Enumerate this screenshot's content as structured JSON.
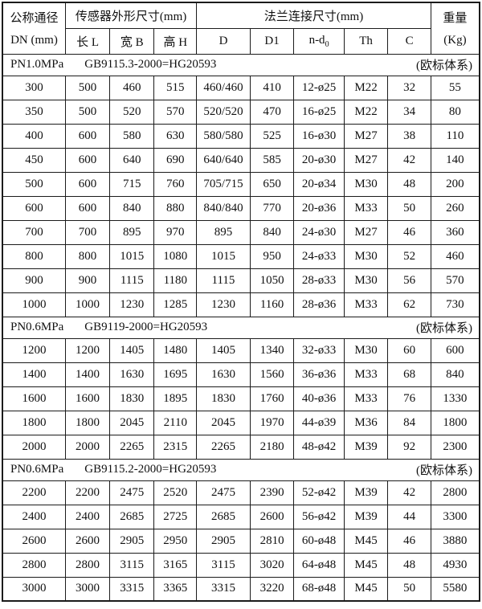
{
  "colors": {
    "border": "#1b1b1b",
    "text": "#111111",
    "background": "#ffffff"
  },
  "table": {
    "header": {
      "dn_line1": "公称通径",
      "dn_line2": "DN (mm)",
      "sensor_dims": "传感器外形尺寸(mm)",
      "flange_dims": "法兰连接尺寸(mm)",
      "weight_line1": "重量",
      "weight_line2": "(Kg)",
      "sub": {
        "l": "长 L",
        "b": "宽 B",
        "h": "高 H",
        "d": "D",
        "d1": "D1",
        "nd_main": "n-d",
        "nd_sub": "0",
        "th": "Th",
        "c": "C"
      }
    },
    "sections": [
      {
        "pressure": "PN1.0MPa",
        "standard": "GB9115.3-2000=HG20593",
        "note": "(欧标体系)",
        "rows": [
          [
            "300",
            "500",
            "460",
            "515",
            "460/460",
            "410",
            "12-ø25",
            "M22",
            "32",
            "55"
          ],
          [
            "350",
            "500",
            "520",
            "570",
            "520/520",
            "470",
            "16-ø25",
            "M22",
            "34",
            "80"
          ],
          [
            "400",
            "600",
            "580",
            "630",
            "580/580",
            "525",
            "16-ø30",
            "M27",
            "38",
            "110"
          ],
          [
            "450",
            "600",
            "640",
            "690",
            "640/640",
            "585",
            "20-ø30",
            "M27",
            "42",
            "140"
          ],
          [
            "500",
            "600",
            "715",
            "760",
            "705/715",
            "650",
            "20-ø34",
            "M30",
            "48",
            "200"
          ],
          [
            "600",
            "600",
            "840",
            "880",
            "840/840",
            "770",
            "20-ø36",
            "M33",
            "50",
            "260"
          ],
          [
            "700",
            "700",
            "895",
            "970",
            "895",
            "840",
            "24-ø30",
            "M27",
            "46",
            "360"
          ],
          [
            "800",
            "800",
            "1015",
            "1080",
            "1015",
            "950",
            "24-ø33",
            "M30",
            "52",
            "460"
          ],
          [
            "900",
            "900",
            "1115",
            "1180",
            "1115",
            "1050",
            "28-ø33",
            "M30",
            "56",
            "570"
          ],
          [
            "1000",
            "1000",
            "1230",
            "1285",
            "1230",
            "1160",
            "28-ø36",
            "M33",
            "62",
            "730"
          ]
        ]
      },
      {
        "pressure": "PN0.6MPa",
        "standard": "GB9119-2000=HG20593",
        "note": "(欧标体系)",
        "rows": [
          [
            "1200",
            "1200",
            "1405",
            "1480",
            "1405",
            "1340",
            "32-ø33",
            "M30",
            "60",
            "600"
          ],
          [
            "1400",
            "1400",
            "1630",
            "1695",
            "1630",
            "1560",
            "36-ø36",
            "M33",
            "68",
            "840"
          ],
          [
            "1600",
            "1600",
            "1830",
            "1895",
            "1830",
            "1760",
            "40-ø36",
            "M33",
            "76",
            "1330"
          ],
          [
            "1800",
            "1800",
            "2045",
            "2110",
            "2045",
            "1970",
            "44-ø39",
            "M36",
            "84",
            "1800"
          ],
          [
            "2000",
            "2000",
            "2265",
            "2315",
            "2265",
            "2180",
            "48-ø42",
            "M39",
            "92",
            "2300"
          ]
        ]
      },
      {
        "pressure": "PN0.6MPa",
        "standard": "GB9115.2-2000=HG20593",
        "note": "(欧标体系)",
        "rows": [
          [
            "2200",
            "2200",
            "2475",
            "2520",
            "2475",
            "2390",
            "52-ø42",
            "M39",
            "42",
            "2800"
          ],
          [
            "2400",
            "2400",
            "2685",
            "2725",
            "2685",
            "2600",
            "56-ø42",
            "M39",
            "44",
            "3300"
          ],
          [
            "2600",
            "2600",
            "2905",
            "2950",
            "2905",
            "2810",
            "60-ø48",
            "M45",
            "46",
            "3880"
          ],
          [
            "2800",
            "2800",
            "3115",
            "3165",
            "3115",
            "3020",
            "64-ø48",
            "M45",
            "48",
            "4930"
          ],
          [
            "3000",
            "3000",
            "3315",
            "3365",
            "3315",
            "3220",
            "68-ø48",
            "M45",
            "50",
            "5580"
          ]
        ]
      }
    ]
  }
}
